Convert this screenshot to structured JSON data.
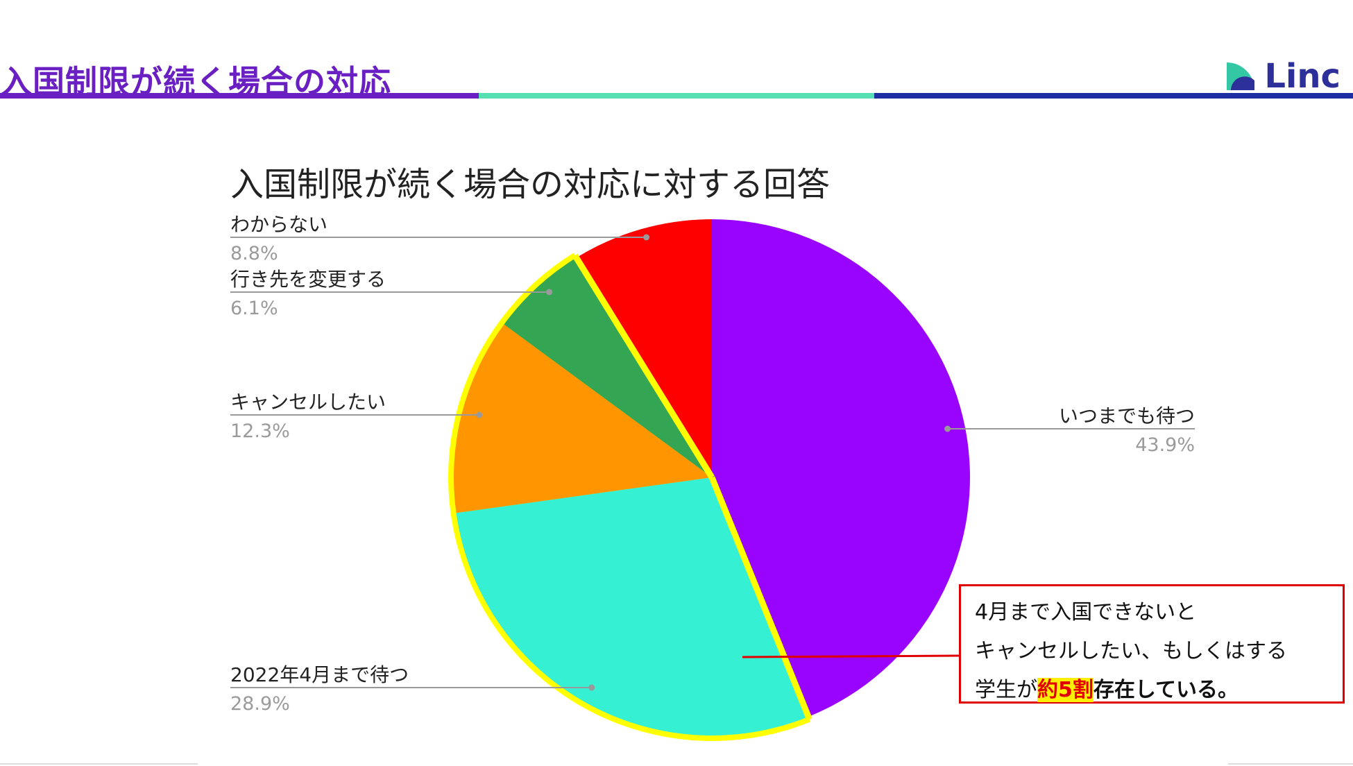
{
  "slide": {
    "title": "入国制限が続く場合の対応",
    "rule_colors": [
      "#6a1fc2",
      "#55dfb3",
      "#1e2ea3"
    ]
  },
  "logo": {
    "text": "Linc",
    "icon": "linc-logo-icon",
    "colors": [
      "#34c7a4",
      "#2d2f9a"
    ]
  },
  "callout": {
    "line1": "4月まで入国できないと",
    "line2": "キャンセルしたい、もしくはする",
    "line3_pre": "学生が",
    "line3_highlight": "約5割",
    "line3_post": "存在している。",
    "border_color": "#e00000",
    "highlight_color": "#ffef00"
  },
  "chart_data": {
    "type": "pie",
    "title": "入国制限が続く場合の対応に対する回答",
    "start": "12 o'clock, clockwise",
    "slices": [
      {
        "label": "いつまでも待つ",
        "value": 43.9,
        "value_label": "43.9%",
        "color": "#9904ff",
        "label_side": "right"
      },
      {
        "label": "2022年4月まで待つ",
        "value": 28.9,
        "value_label": "28.9%",
        "color": "#35f0d2",
        "label_side": "left"
      },
      {
        "label": "キャンセルしたい",
        "value": 12.3,
        "value_label": "12.3%",
        "color": "#ff9500",
        "label_side": "left"
      },
      {
        "label": "行き先を変更する",
        "value": 6.1,
        "value_label": "6.1%",
        "color": "#33a553",
        "label_side": "left"
      },
      {
        "label": "わからない",
        "value": 8.8,
        "value_label": "8.8%",
        "color": "#ff0000",
        "label_side": "left"
      }
    ],
    "highlight": {
      "slices": [
        "2022年4月まで待つ",
        "キャンセルしたい",
        "行き先を変更する"
      ],
      "color": "#ffff00"
    }
  }
}
